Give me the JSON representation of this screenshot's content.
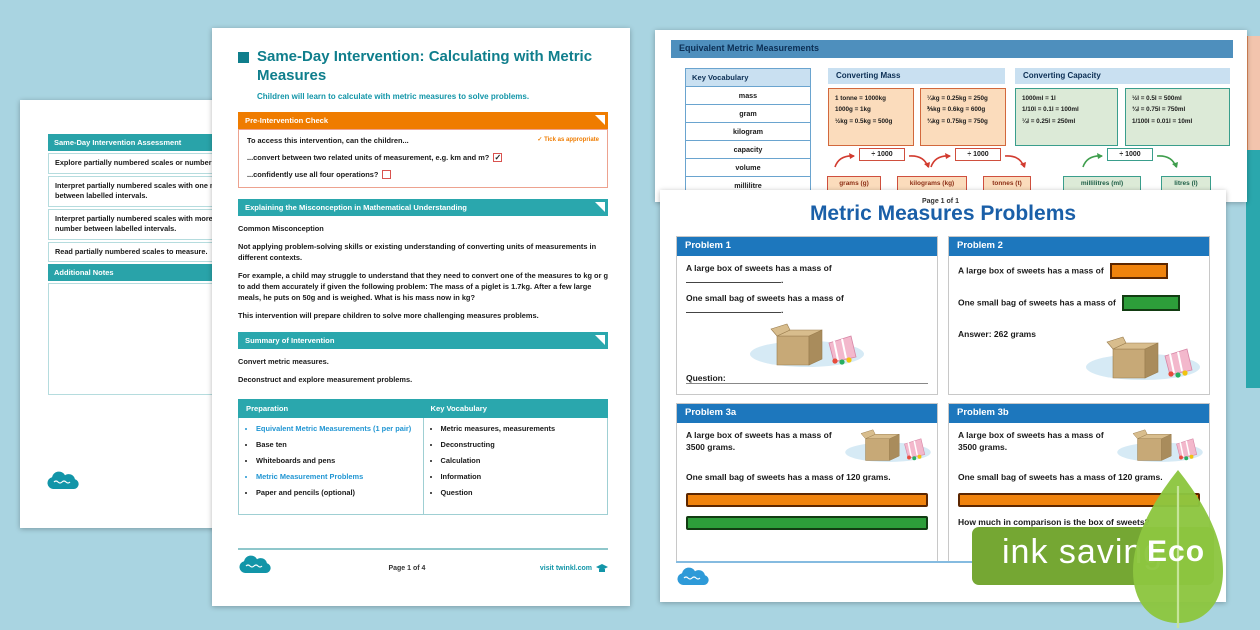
{
  "colors": {
    "background": "#a9d4e1",
    "teal_header": "#2aa7ad",
    "brand_teal": "#0f7e8c",
    "orange_header": "#ef7c00",
    "problems_blue": "#1d77bd",
    "title_blue": "#1a5fa8",
    "link_blue": "#2196d3",
    "eco_green": "#75a733",
    "leaf_green": "#8dc63f",
    "bar_orange": "#f0830d",
    "bar_green": "#2d9e3a"
  },
  "assessment_page": {
    "title": "Same-Day Intervention Assessment",
    "rows": [
      "Explore partially numbered scales or number lines.",
      "Interpret partially numbered scales with one missing number between labelled intervals.",
      "Interpret partially numbered scales with more than one number between labelled intervals.",
      "Read partially numbered scales to measure."
    ],
    "notes_label": "Additional Notes"
  },
  "lesson_page": {
    "title": "Same-Day Intervention: Calculating with Metric Measures",
    "subtitle": "Children will learn to calculate with metric measures to solve problems.",
    "pre_check": {
      "header": "Pre-Intervention Check",
      "intro": "To access this intervention, can the children...",
      "tick_note": "✓ Tick as appropriate",
      "item1": "...convert between two related units of measurement, e.g. km and m?",
      "item2": "...confidently use all four operations?",
      "item1_tick": "✓"
    },
    "misconception": {
      "header": "Explaining the Misconception in Mathematical Understanding",
      "subheader": "Common Misconception",
      "p1": "Not applying problem-solving skills or existing understanding of converting units of measurements in different contexts.",
      "p2": "For example, a child may struggle to understand that they need to convert one of the measures to kg or g to add them accurately if given the following problem: The mass of a piglet is 1.7kg. After a few large meals, he puts on 50g and is weighed. What is his mass now in kg?",
      "p3": "This intervention will prepare children to solve more challenging measures problems."
    },
    "summary": {
      "header": "Summary of Intervention",
      "line1": "Convert metric measures.",
      "line2": "Deconstruct and explore measurement problems."
    },
    "table": {
      "col1_header": "Preparation",
      "col2_header": "Key Vocabulary",
      "preparation": [
        {
          "text": "Equivalent Metric Measurements (1 per pair)",
          "link": true
        },
        {
          "text": "Base ten",
          "link": false
        },
        {
          "text": "Whiteboards and pens",
          "link": false
        },
        {
          "text": "Metric Measurement Problems",
          "link": true
        },
        {
          "text": "Paper and pencils (optional)",
          "link": false
        }
      ],
      "vocabulary": [
        "Metric measures, measurements",
        "Deconstructing",
        "Calculation",
        "Information",
        "Question"
      ]
    },
    "footer": {
      "page": "Page 1 of 4",
      "visit": "visit twinkl.com"
    }
  },
  "equivalents_page": {
    "title": "Equivalent Metric Measurements",
    "vocab": {
      "header": "Key Vocabulary",
      "words": [
        "mass",
        "gram",
        "kilogram",
        "capacity",
        "volume",
        "millilitre"
      ]
    },
    "mass": {
      "header": "Converting Mass",
      "box1": [
        "1 tonne = 1000kg",
        "1000g = 1kg",
        "½kg = 0.5kg = 500g"
      ],
      "box2": [
        "¼kg = 0.25kg = 250g",
        "⅗kg = 0.6kg = 600g",
        "¾kg = 0.75kg = 750g"
      ],
      "op1": "÷ 1000",
      "op2": "÷ 1000",
      "units": [
        "grams (g)",
        "kilograms (kg)",
        "tonnes (t)"
      ]
    },
    "capacity": {
      "header": "Converting Capacity",
      "box1": [
        "1000ml = 1l",
        "1/10l = 0.1l = 100ml",
        "¼l = 0.25l = 250ml"
      ],
      "box2": [
        "½l = 0.5l = 500ml",
        "¾l = 0.75l = 750ml",
        "1/100l = 0.01l = 10ml"
      ],
      "op1": "÷ 1000",
      "units": [
        "millilitres (ml)",
        "litres (l)"
      ]
    }
  },
  "problems_page": {
    "title": "Metric Measures Problems",
    "blank_suffix": ".",
    "problem1": {
      "header": "Problem 1",
      "line1": "A large box of sweets has a mass of",
      "line2": "One small bag of sweets has a mass of",
      "question_label": "Question:"
    },
    "problem2": {
      "header": "Problem 2",
      "line1": "A large box of sweets has a mass of",
      "line2": "One small bag of sweets has a mass of",
      "answer": "Answer: 262 grams"
    },
    "problem3a": {
      "header": "Problem 3a",
      "line1": "A large box of sweets has a mass of 3500 grams.",
      "line2": "One small bag of sweets has a mass of 120 grams."
    },
    "problem3b": {
      "header": "Problem 3b",
      "line1": "A large box of sweets has a mass of 3500 grams.",
      "line2": "One small bag of sweets has a mass of 120 grams.",
      "question": "How much in comparison is the box of sweets?"
    },
    "footer": {
      "page": "Page 1 of 1"
    }
  },
  "eco_badge": {
    "label": "ink saving",
    "eco": "Eco"
  }
}
